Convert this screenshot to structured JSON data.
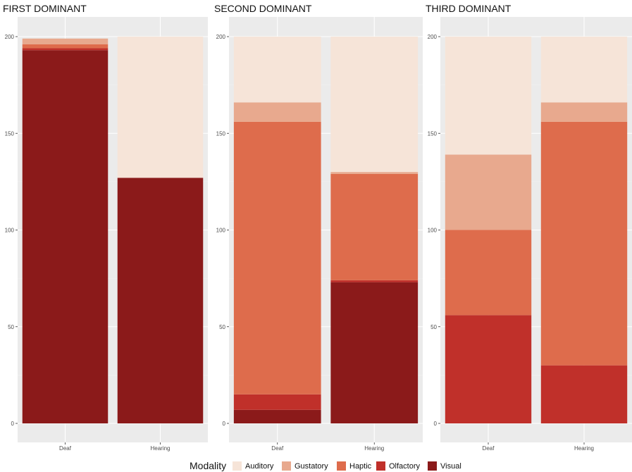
{
  "chart_data": {
    "type": "bar",
    "stacked": true,
    "categories": [
      "Deaf",
      "Hearing"
    ],
    "ylim": [
      0,
      200
    ],
    "yticks": [
      0,
      50,
      100,
      150,
      200
    ],
    "grid": true,
    "legend": {
      "title": "Modality",
      "position": "bottom",
      "entries": [
        {
          "name": "Auditory",
          "color": "#F6E4D8"
        },
        {
          "name": "Gustatory",
          "color": "#E8A98E"
        },
        {
          "name": "Haptic",
          "color": "#DE6C4C"
        },
        {
          "name": "Olfactory",
          "color": "#C0302A"
        },
        {
          "name": "Visual",
          "color": "#8B1A1A"
        }
      ]
    },
    "panels": [
      {
        "title": "FIRST DOMINANT",
        "series": [
          {
            "name": "Visual",
            "values": [
              193,
              127
            ]
          },
          {
            "name": "Olfactory",
            "values": [
              1,
              0
            ]
          },
          {
            "name": "Haptic",
            "values": [
              2,
              0
            ]
          },
          {
            "name": "Gustatory",
            "values": [
              3,
              0
            ]
          },
          {
            "name": "Auditory",
            "values": [
              0,
              73
            ]
          }
        ]
      },
      {
        "title": "SECOND DOMINANT",
        "series": [
          {
            "name": "Visual",
            "values": [
              7,
              73
            ]
          },
          {
            "name": "Olfactory",
            "values": [
              8,
              1
            ]
          },
          {
            "name": "Haptic",
            "values": [
              141,
              55
            ]
          },
          {
            "name": "Gustatory",
            "values": [
              10,
              1
            ]
          },
          {
            "name": "Auditory",
            "values": [
              34,
              70
            ]
          }
        ]
      },
      {
        "title": "THIRD DOMINANT",
        "series": [
          {
            "name": "Visual",
            "values": [
              0,
              0
            ]
          },
          {
            "name": "Olfactory",
            "values": [
              56,
              30
            ]
          },
          {
            "name": "Haptic",
            "values": [
              44,
              126
            ]
          },
          {
            "name": "Gustatory",
            "values": [
              39,
              10
            ]
          },
          {
            "name": "Auditory",
            "values": [
              61,
              34
            ]
          }
        ]
      }
    ]
  }
}
